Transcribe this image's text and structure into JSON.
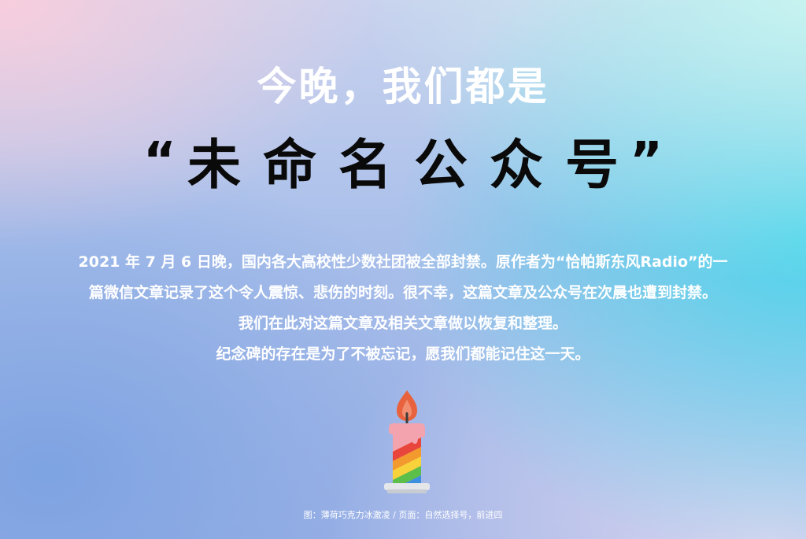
{
  "headline": {
    "line1": "今晚，我们都是",
    "open_quote": "“",
    "name_chars": [
      "未",
      "命",
      "名",
      "公",
      "众",
      "号"
    ],
    "close_quote": "”"
  },
  "intro": {
    "lines": [
      "2021 年 7 月 6 日晚，国内各大高校性少数社团被全部封禁。原作者为“恰帕斯东风Radio”的一",
      "篇微信文章记录了这个令人震惊、悲伤的时刻。很不幸，这篇文章及公众号在次晨也遭到封禁。",
      "我们在此对这篇文章及相关文章做以恢复和整理。",
      "纪念碑的存在是为了不被忘记，愿我们都能记住这一天。"
    ]
  },
  "candle": {
    "icon": "rainbow-candle-icon",
    "flame_color": "#e8623e",
    "wax_top_color": "#f2a3ae",
    "stripe_colors": [
      "#e8453c",
      "#f29a2e",
      "#f7d23a",
      "#5cbf4a",
      "#3d8fe0",
      "#7a4fc2"
    ],
    "plate_color": "#e4e6ea"
  },
  "credit": {
    "text": "图：薄荷巧克力冰激凌 / 页面：自然选择号，前进四"
  }
}
